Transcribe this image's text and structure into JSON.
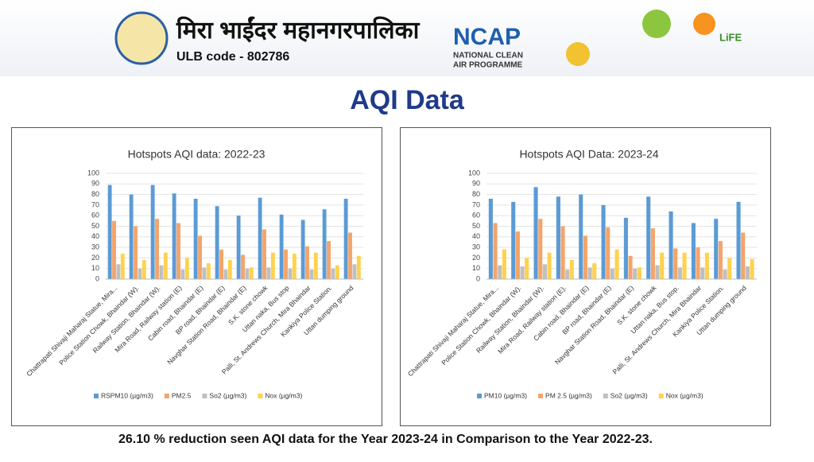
{
  "header": {
    "org_name": "मिरा भाईंदर महानगरपालिका",
    "ulb_code": "ULB code - 802786",
    "ncap": "NCAP",
    "ncap_line1": "NATIONAL CLEAN",
    "ncap_line2": "AIR PROGRAMME",
    "life": "LiFE"
  },
  "page_title": "AQI Data",
  "footer": "26.10 % reduction seen AQI data for the Year 2023-24 in Comparison to the Year 2022-23.",
  "chart_data": [
    {
      "type": "bar",
      "title": "Hotspots AQI data: 2022-23",
      "categories": [
        "Chattrapati Shivaji Maharaj Statue, Mira...",
        "Police Station Chowk, Bhaindar (W).",
        "Railway Station, Bhaindar (W).",
        "Mira Road, Railway station (E)",
        "Cabin road, Bhaindar (E)",
        "BP road, Bhaindar (E)",
        "Navghar Station Road, Bhaindar (E)",
        "S.K. stone chowk",
        "Uttan naka, Bus stop",
        "Palli, St. Andrews Church, Mira Bhaindar",
        "Kankiya Police Station.",
        "Uttan dumping ground"
      ],
      "series": [
        {
          "name": "RSPM10 (µg/m3)",
          "color": "#5b9bd5",
          "values": [
            89,
            80,
            89,
            81,
            76,
            69,
            60,
            77,
            61,
            56,
            66,
            76
          ]
        },
        {
          "name": "PM2.5",
          "color": "#f4a46a",
          "values": [
            55,
            50,
            57,
            53,
            41,
            28,
            23,
            47,
            28,
            31,
            36,
            44
          ]
        },
        {
          "name": "So2 (µg/m3)",
          "color": "#bfbfbf",
          "values": [
            14,
            10,
            13,
            9,
            11,
            9,
            10,
            11,
            10,
            9,
            10,
            14
          ]
        },
        {
          "name": "Nox (µg/m3)",
          "color": "#ffd24d",
          "values": [
            24,
            18,
            25,
            20,
            15,
            18,
            11,
            25,
            24,
            25,
            13,
            22
          ]
        }
      ],
      "ylim": [
        0,
        100
      ],
      "yticks": [
        0,
        10,
        20,
        30,
        40,
        50,
        60,
        70,
        80,
        90,
        100
      ],
      "grid": true,
      "legend": "bottom"
    },
    {
      "type": "bar",
      "title": "Hotspots AQI Data: 2023-24",
      "categories": [
        "Chattrapati Shivaji Maharaj Statue, Mira...",
        "Police Station Chowk, Bhaindar (W).",
        "Railway Station, Bhaindar (W).",
        "Mira Road, Railway station (E).",
        "Cabin road, Bhaindar (E)",
        "BP road, Bhaindar (E)",
        "Navghar Station Road, Bhaindar (E)",
        "S.K. stone chowk",
        "Uttan naka, Bus stop.",
        "Palli, St. Andrews Church, Mira Bhaindar",
        "Kankiya Police Station.",
        "Uttan dumping ground"
      ],
      "series": [
        {
          "name": "PM10 (µg/m3)",
          "color": "#5b9bd5",
          "values": [
            76,
            73,
            87,
            78,
            80,
            70,
            58,
            78,
            64,
            53,
            57,
            73
          ]
        },
        {
          "name": "PM 2.5 (µg/m3)",
          "color": "#f4a46a",
          "values": [
            53,
            45,
            57,
            50,
            41,
            49,
            22,
            48,
            29,
            30,
            36,
            44
          ]
        },
        {
          "name": "So2 (µg/m3)",
          "color": "#bfbfbf",
          "values": [
            13,
            12,
            14,
            9,
            11,
            10,
            10,
            13,
            11,
            11,
            9,
            12
          ]
        },
        {
          "name": "Nox (µg/m3)",
          "color": "#ffd24d",
          "values": [
            28,
            20,
            25,
            18,
            15,
            28,
            11,
            25,
            25,
            25,
            20,
            19
          ]
        }
      ],
      "ylim": [
        0,
        100
      ],
      "yticks": [
        0,
        10,
        20,
        30,
        40,
        50,
        60,
        70,
        80,
        90,
        100
      ],
      "grid": true,
      "legend": "bottom"
    }
  ]
}
